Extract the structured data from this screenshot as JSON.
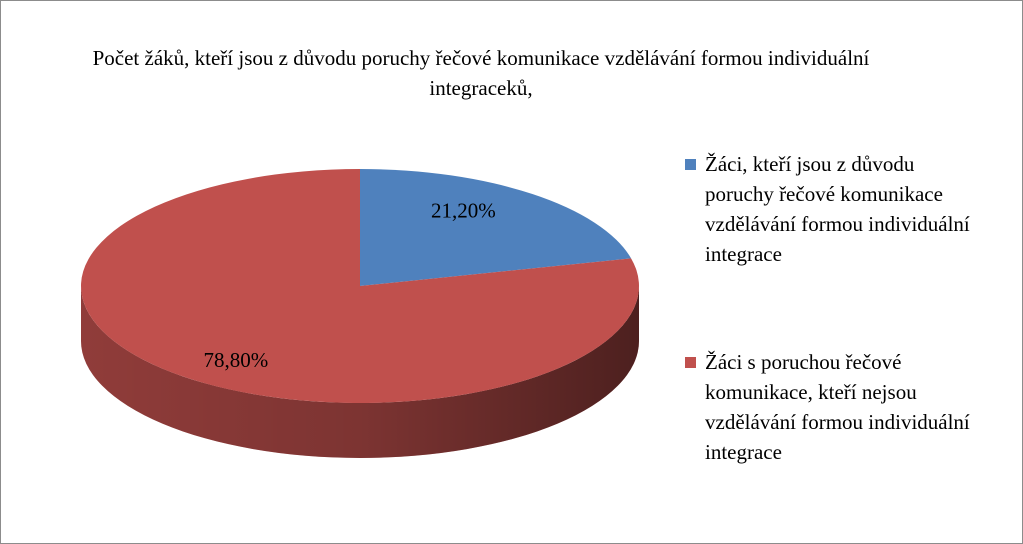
{
  "chart_data": {
    "type": "pie",
    "title": "Počet žáků, kteří jsou z důvodu poruchy řečové komunikace vzdělávání formou individuální integraceků,",
    "categories": [
      "Žáci, kteří jsou z důvodu poruchy řečové komunikace vzdělávání formou individuální integrace",
      "Žáci s poruchou řečové komunikace, kteří nejsou vzdělávání formou individuální integrace"
    ],
    "values": [
      21.2,
      78.8
    ],
    "value_labels": [
      "21,20%",
      "78,80%"
    ],
    "colors": [
      "#4f81bd",
      "#c0504d"
    ],
    "legend": "right"
  }
}
